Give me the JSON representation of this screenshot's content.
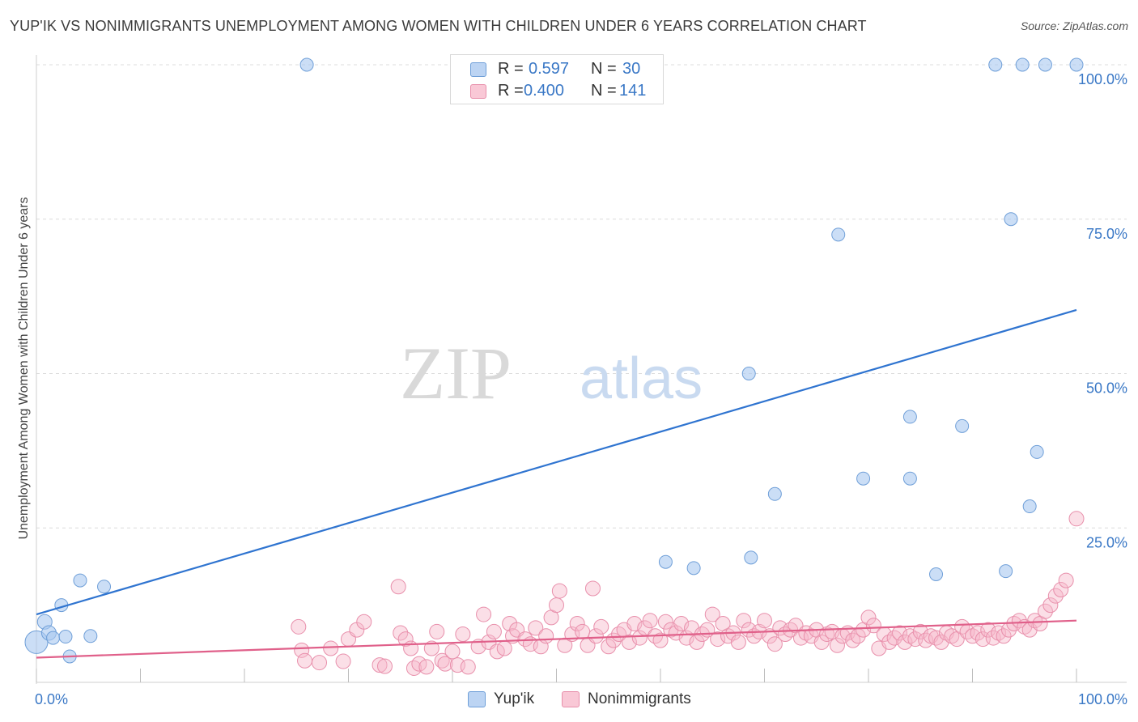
{
  "title": "YUP'IK VS NONIMMIGRANTS UNEMPLOYMENT AMONG WOMEN WITH CHILDREN UNDER 6 YEARS CORRELATION CHART",
  "source": "Source: ZipAtlas.com",
  "watermark": {
    "zip": "ZIP",
    "atlas": "atlas"
  },
  "colors": {
    "yupik_fill": "#a8c8f0",
    "yupik_stroke": "#6f9fd8",
    "yupik_line": "#2f74d0",
    "nonimm_fill": "#f7b8ca",
    "nonimm_stroke": "#e88fab",
    "nonimm_line": "#e0608a",
    "value_text": "#3a78c6",
    "grid": "#dcdcdc"
  },
  "stats": [
    {
      "label_r": "R =",
      "r": "0.597",
      "label_n": "N =",
      "n": "30"
    },
    {
      "label_r": "R =",
      "r": "0.400",
      "label_n": "N =",
      "n": "141"
    }
  ],
  "legend": [
    {
      "label": "Yup'ik"
    },
    {
      "label": "Nonimmigrants"
    }
  ],
  "chart_data": {
    "type": "scatter",
    "title": "YUP'IK VS NONIMMIGRANTS UNEMPLOYMENT AMONG WOMEN WITH CHILDREN UNDER 6 YEARS CORRELATION CHART",
    "xlabel": "",
    "ylabel": "Unemployment Among Women with Children Under 6 years",
    "xlim": [
      0,
      100
    ],
    "ylim": [
      0,
      100
    ],
    "x_tick_labels": [
      "0.0%",
      "100.0%"
    ],
    "y_tick_labels": [
      "100.0%",
      "75.0%",
      "50.0%",
      "25.0%"
    ],
    "y_ticks": [
      100,
      75,
      50,
      25
    ],
    "series": [
      {
        "name": "Yup'ik",
        "r": 0.597,
        "n": 30,
        "trendline": {
          "x": [
            0,
            100
          ],
          "y": [
            11.0,
            60.3
          ]
        },
        "points": [
          [
            0.0,
            6.5,
            14
          ],
          [
            0.8,
            9.8,
            9
          ],
          [
            1.2,
            8.0,
            9
          ],
          [
            1.6,
            7.2,
            8
          ],
          [
            2.4,
            12.5,
            8
          ],
          [
            2.8,
            7.4,
            8
          ],
          [
            3.2,
            4.2,
            8
          ],
          [
            4.2,
            16.5,
            8
          ],
          [
            5.2,
            7.5,
            8
          ],
          [
            6.5,
            15.5,
            8
          ],
          [
            26.0,
            100.0,
            8
          ],
          [
            60.5,
            19.5,
            8
          ],
          [
            63.2,
            18.5,
            8
          ],
          [
            68.5,
            50.0,
            8
          ],
          [
            68.7,
            20.2,
            8
          ],
          [
            71.0,
            30.5,
            8
          ],
          [
            77.1,
            72.5,
            8
          ],
          [
            79.5,
            33.0,
            8
          ],
          [
            84.0,
            33.0,
            8
          ],
          [
            84.0,
            43.0,
            8
          ],
          [
            86.5,
            17.5,
            8
          ],
          [
            89.0,
            41.5,
            8
          ],
          [
            92.2,
            100.0,
            8
          ],
          [
            93.2,
            18.0,
            8
          ],
          [
            93.7,
            75.0,
            8
          ],
          [
            94.8,
            100.0,
            8
          ],
          [
            95.5,
            28.5,
            8
          ],
          [
            96.2,
            37.3,
            8
          ],
          [
            97.0,
            100.0,
            8
          ],
          [
            100.0,
            100.0,
            8
          ]
        ]
      },
      {
        "name": "Nonimmigrants",
        "r": 0.4,
        "n": 141,
        "trendline": {
          "x": [
            0,
            100
          ],
          "y": [
            4.0,
            10.0
          ]
        },
        "points": [
          [
            25.2,
            9.0
          ],
          [
            25.5,
            5.2
          ],
          [
            25.8,
            3.5
          ],
          [
            27.2,
            3.2
          ],
          [
            28.3,
            5.5
          ],
          [
            29.5,
            3.4
          ],
          [
            30.0,
            7.0
          ],
          [
            30.8,
            8.5
          ],
          [
            31.5,
            9.8
          ],
          [
            33.0,
            2.8
          ],
          [
            33.5,
            2.6
          ],
          [
            34.8,
            15.5
          ],
          [
            35.0,
            8.0
          ],
          [
            35.5,
            7.0
          ],
          [
            36.0,
            5.5
          ],
          [
            36.3,
            2.3
          ],
          [
            36.8,
            3.0
          ],
          [
            37.5,
            2.5
          ],
          [
            38.0,
            5.5
          ],
          [
            38.5,
            8.2
          ],
          [
            39.0,
            3.5
          ],
          [
            39.3,
            3.0
          ],
          [
            40.0,
            5.0
          ],
          [
            40.5,
            2.8
          ],
          [
            41.0,
            7.8
          ],
          [
            41.5,
            2.5
          ],
          [
            42.5,
            5.8
          ],
          [
            43.0,
            11.0
          ],
          [
            43.5,
            6.5
          ],
          [
            44.0,
            8.2
          ],
          [
            44.3,
            5.0
          ],
          [
            45.0,
            5.5
          ],
          [
            45.5,
            9.5
          ],
          [
            45.8,
            7.5
          ],
          [
            46.2,
            8.5
          ],
          [
            47.0,
            7.0
          ],
          [
            47.5,
            6.2
          ],
          [
            48.0,
            8.8
          ],
          [
            48.5,
            5.8
          ],
          [
            49.0,
            7.5
          ],
          [
            49.5,
            10.5
          ],
          [
            50.0,
            12.5
          ],
          [
            50.3,
            14.8
          ],
          [
            50.8,
            6.0
          ],
          [
            51.5,
            7.8
          ],
          [
            52.0,
            9.5
          ],
          [
            52.5,
            8.2
          ],
          [
            53.0,
            6.0
          ],
          [
            53.5,
            15.2
          ],
          [
            53.8,
            7.5
          ],
          [
            54.3,
            9.0
          ],
          [
            55.0,
            5.8
          ],
          [
            55.5,
            6.8
          ],
          [
            56.0,
            7.8
          ],
          [
            56.5,
            8.5
          ],
          [
            57.0,
            6.5
          ],
          [
            57.5,
            9.5
          ],
          [
            58.0,
            7.2
          ],
          [
            58.5,
            8.8
          ],
          [
            59.0,
            10.0
          ],
          [
            59.5,
            7.5
          ],
          [
            60.0,
            6.8
          ],
          [
            60.5,
            9.8
          ],
          [
            61.0,
            8.5
          ],
          [
            61.5,
            8.0
          ],
          [
            62.0,
            9.5
          ],
          [
            62.5,
            7.2
          ],
          [
            63.0,
            8.8
          ],
          [
            63.5,
            6.5
          ],
          [
            64.0,
            7.8
          ],
          [
            64.5,
            8.5
          ],
          [
            65.0,
            11.0
          ],
          [
            65.5,
            7.0
          ],
          [
            66.0,
            9.5
          ],
          [
            66.5,
            7.5
          ],
          [
            67.0,
            8.0
          ],
          [
            67.5,
            6.5
          ],
          [
            68.0,
            10.0
          ],
          [
            68.5,
            8.5
          ],
          [
            69.0,
            7.5
          ],
          [
            69.5,
            8.2
          ],
          [
            70.0,
            10.0
          ],
          [
            70.5,
            7.5
          ],
          [
            71.0,
            6.2
          ],
          [
            71.5,
            8.8
          ],
          [
            72.0,
            7.8
          ],
          [
            72.5,
            8.5
          ],
          [
            73.0,
            9.2
          ],
          [
            73.5,
            7.2
          ],
          [
            74.0,
            8.0
          ],
          [
            74.5,
            7.5
          ],
          [
            75.0,
            8.5
          ],
          [
            75.5,
            6.5
          ],
          [
            76.0,
            7.8
          ],
          [
            76.5,
            8.2
          ],
          [
            77.0,
            6.0
          ],
          [
            77.5,
            7.5
          ],
          [
            78.0,
            8.0
          ],
          [
            78.5,
            6.8
          ],
          [
            79.0,
            7.5
          ],
          [
            79.5,
            8.5
          ],
          [
            80.0,
            10.5
          ],
          [
            80.5,
            9.2
          ],
          [
            81.0,
            5.5
          ],
          [
            81.5,
            7.8
          ],
          [
            82.0,
            6.5
          ],
          [
            82.5,
            7.2
          ],
          [
            83.0,
            8.0
          ],
          [
            83.5,
            6.5
          ],
          [
            84.0,
            7.5
          ],
          [
            84.5,
            7.0
          ],
          [
            85.0,
            8.2
          ],
          [
            85.5,
            6.8
          ],
          [
            86.0,
            7.5
          ],
          [
            86.5,
            7.2
          ],
          [
            87.0,
            6.5
          ],
          [
            87.5,
            8.0
          ],
          [
            88.0,
            7.5
          ],
          [
            88.5,
            7.0
          ],
          [
            89.0,
            9.0
          ],
          [
            89.5,
            8.2
          ],
          [
            90.0,
            7.5
          ],
          [
            90.5,
            8.0
          ],
          [
            91.0,
            7.0
          ],
          [
            91.5,
            8.5
          ],
          [
            92.0,
            7.2
          ],
          [
            92.5,
            8.0
          ],
          [
            93.0,
            7.5
          ],
          [
            93.5,
            8.5
          ],
          [
            94.0,
            9.5
          ],
          [
            94.5,
            10.0
          ],
          [
            95.0,
            9.0
          ],
          [
            95.5,
            8.5
          ],
          [
            96.0,
            10.0
          ],
          [
            96.5,
            9.5
          ],
          [
            97.0,
            11.5
          ],
          [
            97.5,
            12.5
          ],
          [
            98.0,
            14.0
          ],
          [
            98.5,
            15.0
          ],
          [
            99.0,
            16.5
          ],
          [
            100.0,
            26.5
          ]
        ]
      }
    ]
  }
}
